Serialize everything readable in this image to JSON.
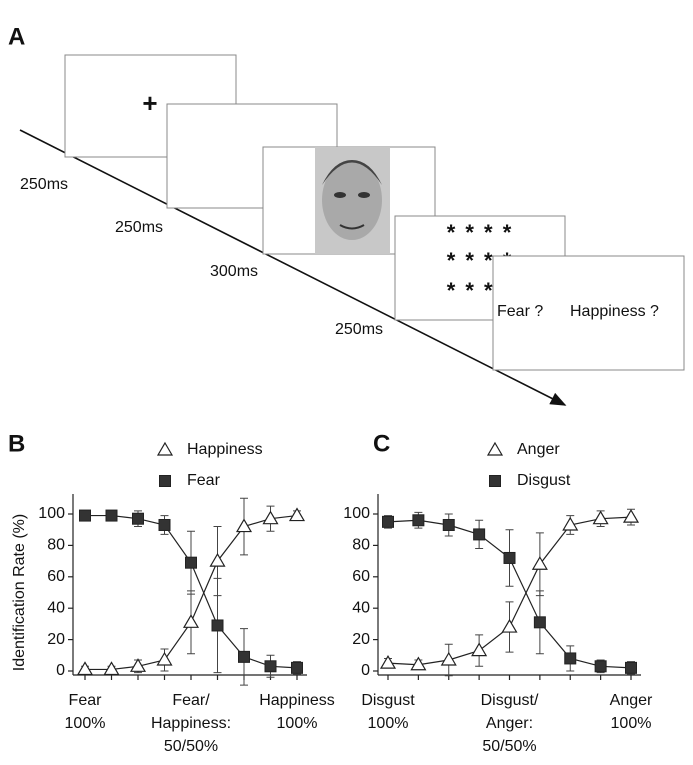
{
  "panels": [
    "A",
    "B",
    "C"
  ],
  "diagram": {
    "fixation": "+",
    "mask": [
      "* * * *",
      "* * * *",
      "* * * *"
    ],
    "response": [
      "Fear ?",
      "Happiness ?"
    ],
    "durations": [
      "250ms",
      "250ms",
      "300ms",
      "250ms"
    ]
  },
  "chart_data": [
    {
      "type": "line",
      "y_label": "Identification Rate (%)",
      "categories": [
        "Fear\n100%",
        null,
        null,
        null,
        "Fear/\nHappiness:\n50/50%",
        null,
        null,
        null,
        "Happiness\n100%"
      ],
      "ylim": [
        0,
        100
      ],
      "yticks": [
        0,
        20,
        40,
        60,
        80,
        100
      ],
      "series": [
        {
          "name": "Happiness",
          "marker": "triangle",
          "color": "#ffffff",
          "values": [
            1,
            1,
            3,
            7,
            31,
            70,
            92,
            97,
            99
          ],
          "errors": [
            2,
            2,
            4,
            7,
            20,
            22,
            18,
            8,
            3
          ]
        },
        {
          "name": "Fear",
          "marker": "square",
          "color": "#333333",
          "values": [
            99,
            99,
            97,
            93,
            69,
            29,
            9,
            3,
            2
          ],
          "errors": [
            3,
            3,
            5,
            6,
            20,
            30,
            18,
            7,
            4
          ]
        }
      ]
    },
    {
      "type": "line",
      "categories": [
        "Disgust\n100%",
        null,
        null,
        null,
        "Disgust/\nAnger:\n50/50%",
        null,
        null,
        null,
        "Anger\n100%"
      ],
      "ylim": [
        0,
        100
      ],
      "yticks": [
        0,
        20,
        40,
        60,
        80,
        100
      ],
      "series": [
        {
          "name": "Anger",
          "marker": "triangle",
          "color": "#ffffff",
          "values": [
            5,
            4,
            7,
            13,
            28,
            68,
            93,
            97,
            98
          ],
          "errors": [
            3,
            3,
            10,
            10,
            16,
            20,
            6,
            5,
            5
          ]
        },
        {
          "name": "Disgust",
          "marker": "square",
          "color": "#333333",
          "values": [
            95,
            96,
            93,
            87,
            72,
            31,
            8,
            3,
            2
          ],
          "errors": [
            4,
            5,
            7,
            9,
            18,
            20,
            8,
            4,
            4
          ]
        }
      ]
    }
  ]
}
